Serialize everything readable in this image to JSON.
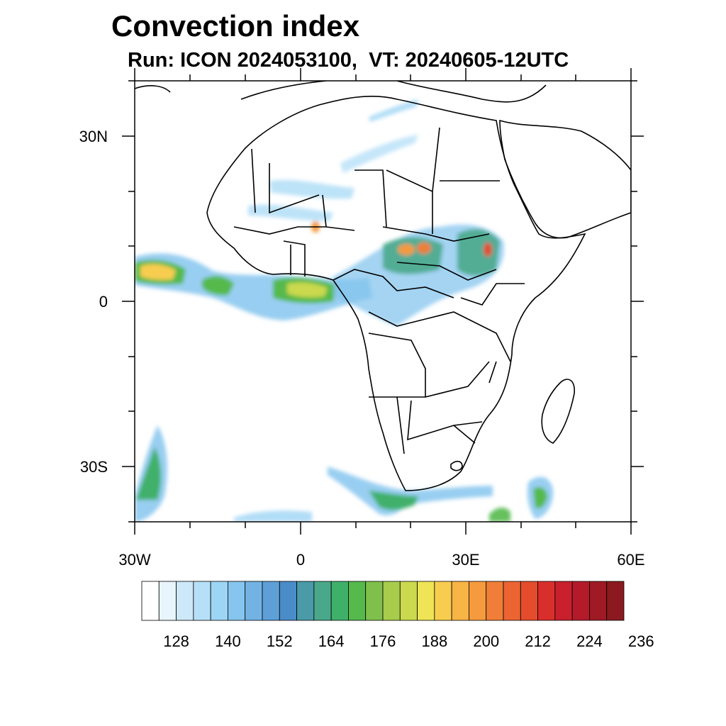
{
  "title": "Convection index",
  "subtitle": "Run: ICON 2024053100,  VT: 20240605-12UTC",
  "map": {
    "lat_labels": [
      "30N",
      "0",
      "30S"
    ],
    "lon_labels": [
      "30W",
      "0",
      "30E",
      "60E"
    ],
    "region": "Africa and surrounding oceans",
    "lon_range": [
      -30,
      60
    ],
    "lat_range": [
      -40,
      40
    ]
  },
  "colorbar": {
    "colors": [
      "#ffffff",
      "#e8f5fc",
      "#cde9f9",
      "#b6e0f7",
      "#9dd5f5",
      "#86c6ee",
      "#73b3e4",
      "#5e9fd8",
      "#4a8cc8",
      "#4a9aa8",
      "#4aa88a",
      "#3fb06a",
      "#55b94c",
      "#7fc04c",
      "#a8cc4c",
      "#cad94e",
      "#eee455",
      "#f8cd4f",
      "#f9b446",
      "#f59a3e",
      "#f07e38",
      "#eb6432",
      "#e44c2d",
      "#d92f2c",
      "#c8202d",
      "#b41b2a",
      "#9f1a24",
      "#8a1a1f"
    ],
    "tick_labels": [
      "128",
      "140",
      "152",
      "164",
      "176",
      "188",
      "200",
      "212",
      "224",
      "236"
    ]
  }
}
